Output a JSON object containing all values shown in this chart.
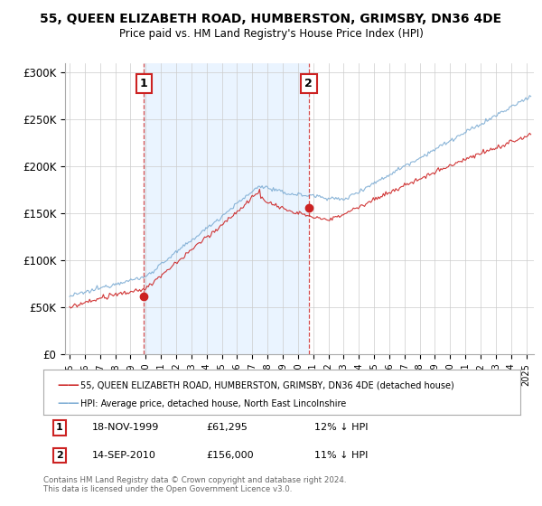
{
  "title": "55, QUEEN ELIZABETH ROAD, HUMBERSTON, GRIMSBY, DN36 4DE",
  "subtitle": "Price paid vs. HM Land Registry's House Price Index (HPI)",
  "ylabel_ticks": [
    "£0",
    "£50K",
    "£100K",
    "£150K",
    "£200K",
    "£250K",
    "£300K"
  ],
  "ytick_values": [
    0,
    50000,
    100000,
    150000,
    200000,
    250000,
    300000
  ],
  "ylim": [
    0,
    310000
  ],
  "xlim_start": 1994.7,
  "xlim_end": 2025.5,
  "hpi_color": "#7eadd4",
  "price_color": "#cc2222",
  "vline_color": "#cc2222",
  "shade_color": "#ddeeff",
  "sale1_x": 1999.88,
  "sale1_y": 61295,
  "sale1_label": "1",
  "sale2_x": 2010.71,
  "sale2_y": 156000,
  "sale2_label": "2",
  "legend_line1": "55, QUEEN ELIZABETH ROAD, HUMBERSTON, GRIMSBY, DN36 4DE (detached house)",
  "legend_line2": "HPI: Average price, detached house, North East Lincolnshire",
  "footer": "Contains HM Land Registry data © Crown copyright and database right 2024.\nThis data is licensed under the Open Government Licence v3.0.",
  "background_color": "#ffffff",
  "grid_color": "#cccccc"
}
